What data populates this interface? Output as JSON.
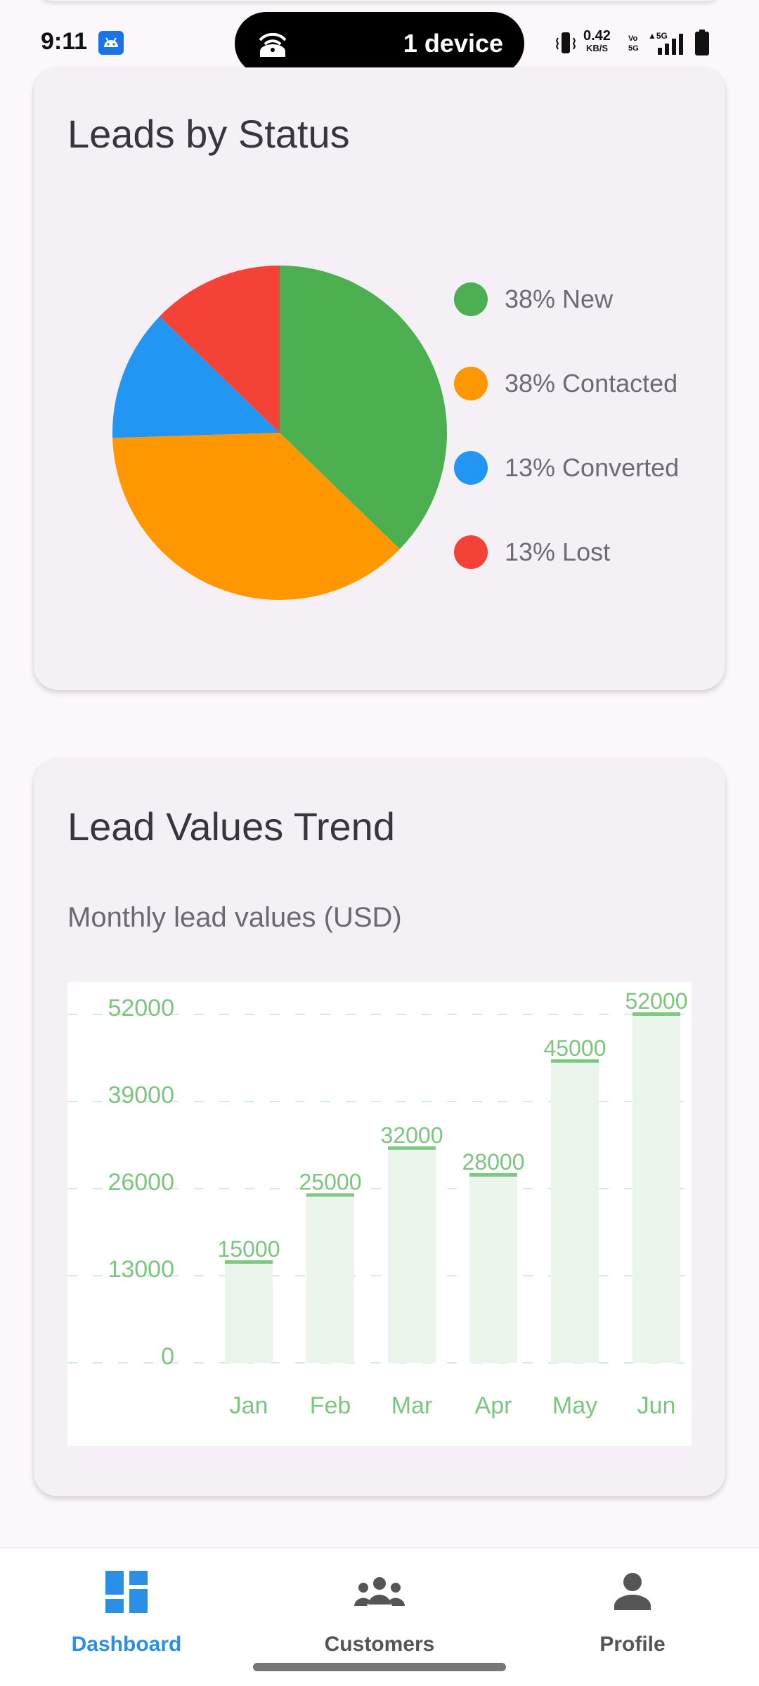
{
  "status_bar": {
    "time": "9:11",
    "hotspot_label": "1 device",
    "net_speed": "0.42",
    "net_speed_unit": "KB/S",
    "icons": [
      "android-notification-icon",
      "hotspot-icon",
      "vibrate-icon",
      "volte-icon",
      "signal-5g-icon",
      "battery-icon"
    ]
  },
  "leads_card": {
    "title": "Leads by Status",
    "legend": [
      {
        "label": "38% New",
        "color": "#4caf50"
      },
      {
        "label": "38% Contacted",
        "color": "#ff9800"
      },
      {
        "label": "13% Converted",
        "color": "#2196f3"
      },
      {
        "label": "13% Lost",
        "color": "#f44336"
      }
    ]
  },
  "trend_card": {
    "title": "Lead Values Trend",
    "subtitle": "Monthly lead values (USD)"
  },
  "chart_data": [
    {
      "type": "pie",
      "title": "Leads by Status",
      "categories": [
        "New",
        "Contacted",
        "Converted",
        "Lost"
      ],
      "values": [
        38,
        38,
        13,
        13
      ],
      "unit": "%",
      "colors": [
        "#4caf50",
        "#ff9800",
        "#2196f3",
        "#f44336"
      ],
      "legend_placement": "right"
    },
    {
      "type": "bar",
      "title": "Lead Values Trend",
      "subtitle": "Monthly lead values (USD)",
      "categories": [
        "Jan",
        "Feb",
        "Mar",
        "Apr",
        "May",
        "Jun"
      ],
      "values": [
        15000,
        25000,
        32000,
        28000,
        45000,
        52000
      ],
      "data_labels": [
        "15000",
        "25000",
        "32000",
        "28000",
        "45000",
        "52000"
      ],
      "y_ticks": [
        0,
        13000,
        26000,
        39000,
        52000
      ],
      "y_tick_labels": [
        "0",
        "13000",
        "26000",
        "39000",
        "52000"
      ],
      "ylim": [
        0,
        52000
      ],
      "grid": true,
      "grid_style": "dashed",
      "bar_fill_color": "#ebf5ec",
      "bar_top_color": "#81c784",
      "label_color": "#7cc47f",
      "grid_color": "#d6ece0"
    }
  ],
  "bottom_nav": {
    "items": [
      {
        "label": "Dashboard",
        "icon": "dashboard-icon",
        "active": true
      },
      {
        "label": "Customers",
        "icon": "customers-icon",
        "active": false
      },
      {
        "label": "Profile",
        "icon": "profile-icon",
        "active": false
      }
    ],
    "active_color": "#2b8fe6",
    "inactive_color": "#555555"
  }
}
